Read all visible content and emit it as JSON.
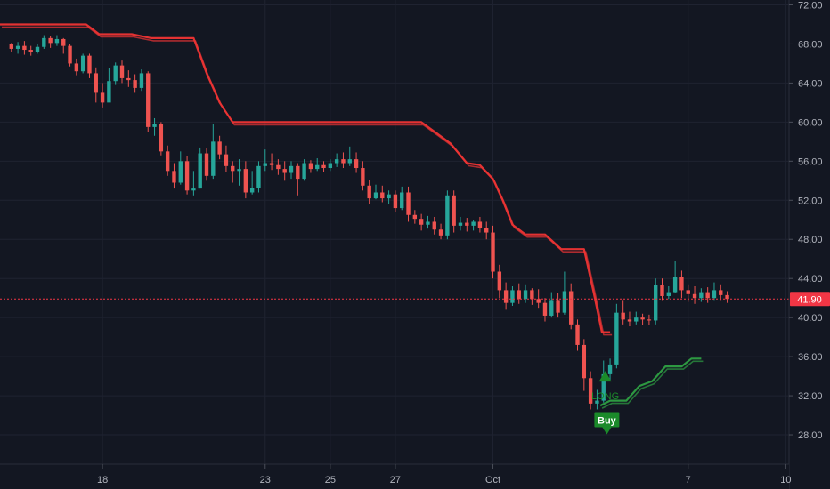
{
  "colors": {
    "background": "#131722",
    "grid": "#1f2331",
    "axis_text": "#b2b5be",
    "candle_up": "#26a69a",
    "candle_down": "#ef5350",
    "trail_stop_short": "#ef3434",
    "trail_stop_long": "#2ea043",
    "last_price": "#f23645",
    "signal_bg": "#1b8a2a",
    "signal_text": "#1b8a2a"
  },
  "chart_data": {
    "type": "candlestick",
    "x_tick_labels": [
      {
        "label": "18",
        "day": 2
      },
      {
        "label": "23",
        "day": 7
      },
      {
        "label": "25",
        "day": 9
      },
      {
        "label": "27",
        "day": 11
      },
      {
        "label": "Oct",
        "day": 14
      },
      {
        "label": "7",
        "day": 20
      },
      {
        "label": "10",
        "day": 23
      }
    ],
    "y_tick_labels": [
      "72.00",
      "68.00",
      "64.00",
      "60.00",
      "56.00",
      "52.00",
      "48.00",
      "44.00",
      "40.00",
      "36.00",
      "32.00",
      "28.00"
    ],
    "ylim": [
      25,
      72.5
    ],
    "xlim": [
      -1.15,
      23.1
    ],
    "last_price": {
      "label": "41.90",
      "value": 41.9
    },
    "candles": [
      [
        68.0,
        67.5,
        68.1,
        67.2
      ],
      [
        67.5,
        67.8,
        68.2,
        67.0
      ],
      [
        67.8,
        67.4,
        68.3,
        66.9
      ],
      [
        67.4,
        67.2,
        67.8,
        66.8
      ],
      [
        67.2,
        67.7,
        68.0,
        67.0
      ],
      [
        67.7,
        68.6,
        68.9,
        67.5
      ],
      [
        68.6,
        68.1,
        68.8,
        67.6
      ],
      [
        68.1,
        68.5,
        68.9,
        67.8
      ],
      [
        68.5,
        67.8,
        68.6,
        67.0
      ],
      [
        67.8,
        66.0,
        68.0,
        65.7
      ],
      [
        66.0,
        65.2,
        66.5,
        64.8
      ],
      [
        65.2,
        66.8,
        67.0,
        65.0
      ],
      [
        66.8,
        65.0,
        67.0,
        64.5
      ],
      [
        65.0,
        63.0,
        65.6,
        62.0
      ],
      [
        63.0,
        62.0,
        64.0,
        61.5
      ],
      [
        62.0,
        64.2,
        65.5,
        62.3
      ],
      [
        64.2,
        65.8,
        66.1,
        63.8
      ],
      [
        65.8,
        64.5,
        66.3,
        64.0
      ],
      [
        64.5,
        64.3,
        65.3,
        63.6
      ],
      [
        64.3,
        63.5,
        64.9,
        63.0
      ],
      [
        63.5,
        65.0,
        65.4,
        63.2
      ],
      [
        65.0,
        59.5,
        65.2,
        59.0
      ],
      [
        59.5,
        59.8,
        60.4,
        58.6
      ],
      [
        59.8,
        57.0,
        60.0,
        56.6
      ],
      [
        57.0,
        55.0,
        57.6,
        54.5
      ],
      [
        55.0,
        53.8,
        55.8,
        53.2
      ],
      [
        53.8,
        56.0,
        57.0,
        53.6
      ],
      [
        56.0,
        53.0,
        56.5,
        52.6
      ],
      [
        53.0,
        53.2,
        55.0,
        52.5
      ],
      [
        53.2,
        56.8,
        57.4,
        53.2
      ],
      [
        56.8,
        54.5,
        57.3,
        54.0
      ],
      [
        54.5,
        58.0,
        59.8,
        54.2
      ],
      [
        58.0,
        56.7,
        58.6,
        56.2
      ],
      [
        56.7,
        55.5,
        57.6,
        54.9
      ],
      [
        55.5,
        55.0,
        56.0,
        53.8
      ],
      [
        55.0,
        55.2,
        56.2,
        53.5
      ],
      [
        55.2,
        52.8,
        56.0,
        52.2
      ],
      [
        52.8,
        53.3,
        55.0,
        52.6
      ],
      [
        53.3,
        55.5,
        56.0,
        52.8
      ],
      [
        55.5,
        55.8,
        57.2,
        55.0
      ],
      [
        55.8,
        55.6,
        56.8,
        55.1
      ],
      [
        55.6,
        55.2,
        56.2,
        54.6
      ],
      [
        55.2,
        54.8,
        56.0,
        54.0
      ],
      [
        54.8,
        55.5,
        56.0,
        54.2
      ],
      [
        55.5,
        54.2,
        55.8,
        52.5
      ],
      [
        54.2,
        55.8,
        56.2,
        54.0
      ],
      [
        55.8,
        55.2,
        56.1,
        54.8
      ],
      [
        55.2,
        55.6,
        56.3,
        55.0
      ],
      [
        55.6,
        55.3,
        56.0,
        54.9
      ],
      [
        55.3,
        55.8,
        56.2,
        55.0
      ],
      [
        55.8,
        56.2,
        56.8,
        55.4
      ],
      [
        56.2,
        55.8,
        56.9,
        55.3
      ],
      [
        55.8,
        56.2,
        57.5,
        55.5
      ],
      [
        56.2,
        55.3,
        56.9,
        54.8
      ],
      [
        55.3,
        53.5,
        56.0,
        53.0
      ],
      [
        53.5,
        52.2,
        54.1,
        51.6
      ],
      [
        52.2,
        52.8,
        53.6,
        52.1
      ],
      [
        52.8,
        52.2,
        53.5,
        51.8
      ],
      [
        52.2,
        52.6,
        53.0,
        51.6
      ],
      [
        52.6,
        51.2,
        53.0,
        50.8
      ],
      [
        51.2,
        52.8,
        53.4,
        51.0
      ],
      [
        52.8,
        50.5,
        53.4,
        49.8
      ],
      [
        50.5,
        50.1,
        51.0,
        49.6
      ],
      [
        50.1,
        49.5,
        50.6,
        48.9
      ],
      [
        49.5,
        49.8,
        50.4,
        49.1
      ],
      [
        49.8,
        49.0,
        50.3,
        48.5
      ],
      [
        49.0,
        48.4,
        49.6,
        48.0
      ],
      [
        48.4,
        52.5,
        53.0,
        48.0
      ],
      [
        52.5,
        49.4,
        53.0,
        48.7
      ],
      [
        49.4,
        49.7,
        50.3,
        48.9
      ],
      [
        49.7,
        49.4,
        50.2,
        48.8
      ],
      [
        49.4,
        49.8,
        50.0,
        48.9
      ],
      [
        49.8,
        49.2,
        50.3,
        48.7
      ],
      [
        49.2,
        48.7,
        49.8,
        48.0
      ],
      [
        48.7,
        44.7,
        49.4,
        44.0
      ],
      [
        44.7,
        42.8,
        45.4,
        42.0
      ],
      [
        42.8,
        41.5,
        43.6,
        40.8
      ],
      [
        41.5,
        42.8,
        43.2,
        41.2
      ],
      [
        42.8,
        41.9,
        43.5,
        41.4
      ],
      [
        41.9,
        42.8,
        43.4,
        41.5
      ],
      [
        42.8,
        41.9,
        43.0,
        41.3
      ],
      [
        41.9,
        41.5,
        42.9,
        41.0
      ],
      [
        41.5,
        40.2,
        42.0,
        39.6
      ],
      [
        40.2,
        41.8,
        42.6,
        40.0
      ],
      [
        41.8,
        40.5,
        42.5,
        40.0
      ],
      [
        40.5,
        42.7,
        44.7,
        40.3
      ],
      [
        42.7,
        39.3,
        43.5,
        38.8
      ],
      [
        39.3,
        37.2,
        39.8,
        36.6
      ],
      [
        37.2,
        33.8,
        37.8,
        32.5
      ],
      [
        33.8,
        31.2,
        34.5,
        30.6
      ],
      [
        31.2,
        31.5,
        32.6,
        30.6
      ],
      [
        31.5,
        34.2,
        35.6,
        31.3
      ],
      [
        34.2,
        35.2,
        35.8,
        33.6
      ],
      [
        35.2,
        40.5,
        41.4,
        34.8
      ],
      [
        40.5,
        39.8,
        41.8,
        39.3
      ],
      [
        39.8,
        39.6,
        40.6,
        39.1
      ],
      [
        39.6,
        40.0,
        40.6,
        39.3
      ],
      [
        40.0,
        39.8,
        40.4,
        39.2
      ],
      [
        39.8,
        39.7,
        40.3,
        39.2
      ],
      [
        39.7,
        43.3,
        44.0,
        39.3
      ],
      [
        43.3,
        42.2,
        44.0,
        41.8
      ],
      [
        42.2,
        42.6,
        43.2,
        41.9
      ],
      [
        42.6,
        44.2,
        45.8,
        42.5
      ],
      [
        44.2,
        42.8,
        44.8,
        42.0
      ],
      [
        42.8,
        42.4,
        43.4,
        41.6
      ],
      [
        42.4,
        42.0,
        43.2,
        41.4
      ],
      [
        42.0,
        42.6,
        43.0,
        41.6
      ],
      [
        42.6,
        42.0,
        43.1,
        41.5
      ],
      [
        42.0,
        42.8,
        43.6,
        41.8
      ],
      [
        42.8,
        42.3,
        43.4,
        41.8
      ],
      [
        42.3,
        41.9,
        42.7,
        41.5
      ]
    ],
    "trail_stop_short": [
      [
        -1.15,
        70.0
      ],
      [
        1.5,
        70.0
      ],
      [
        1.9,
        69.0
      ],
      [
        2.9,
        69.0
      ],
      [
        3.5,
        68.6
      ],
      [
        4.8,
        68.6
      ],
      [
        5.2,
        65.0
      ],
      [
        5.6,
        62.0
      ],
      [
        6.0,
        60.0
      ],
      [
        11.8,
        60.0
      ],
      [
        12.3,
        58.8
      ],
      [
        12.7,
        57.8
      ],
      [
        13.2,
        55.8
      ],
      [
        13.6,
        55.6
      ],
      [
        14.0,
        54.2
      ],
      [
        14.3,
        52.0
      ],
      [
        14.6,
        49.5
      ],
      [
        15.0,
        48.5
      ],
      [
        15.6,
        48.5
      ],
      [
        16.1,
        47.0
      ],
      [
        16.8,
        47.0
      ],
      [
        17.1,
        42.5
      ],
      [
        17.35,
        38.5
      ],
      [
        17.6,
        38.5
      ]
    ],
    "trail_stop_long": [
      [
        17.3,
        31.0
      ],
      [
        17.6,
        31.5
      ],
      [
        18.1,
        31.5
      ],
      [
        18.5,
        33.0
      ],
      [
        18.9,
        33.5
      ],
      [
        19.3,
        35.0
      ],
      [
        19.8,
        35.0
      ],
      [
        20.1,
        35.8
      ],
      [
        20.4,
        35.8
      ]
    ],
    "signals": [
      {
        "label": "LONG",
        "x": 17.45,
        "y": 32.0
      },
      {
        "label": "Buy",
        "x": 17.5,
        "y": 29.5
      }
    ]
  }
}
